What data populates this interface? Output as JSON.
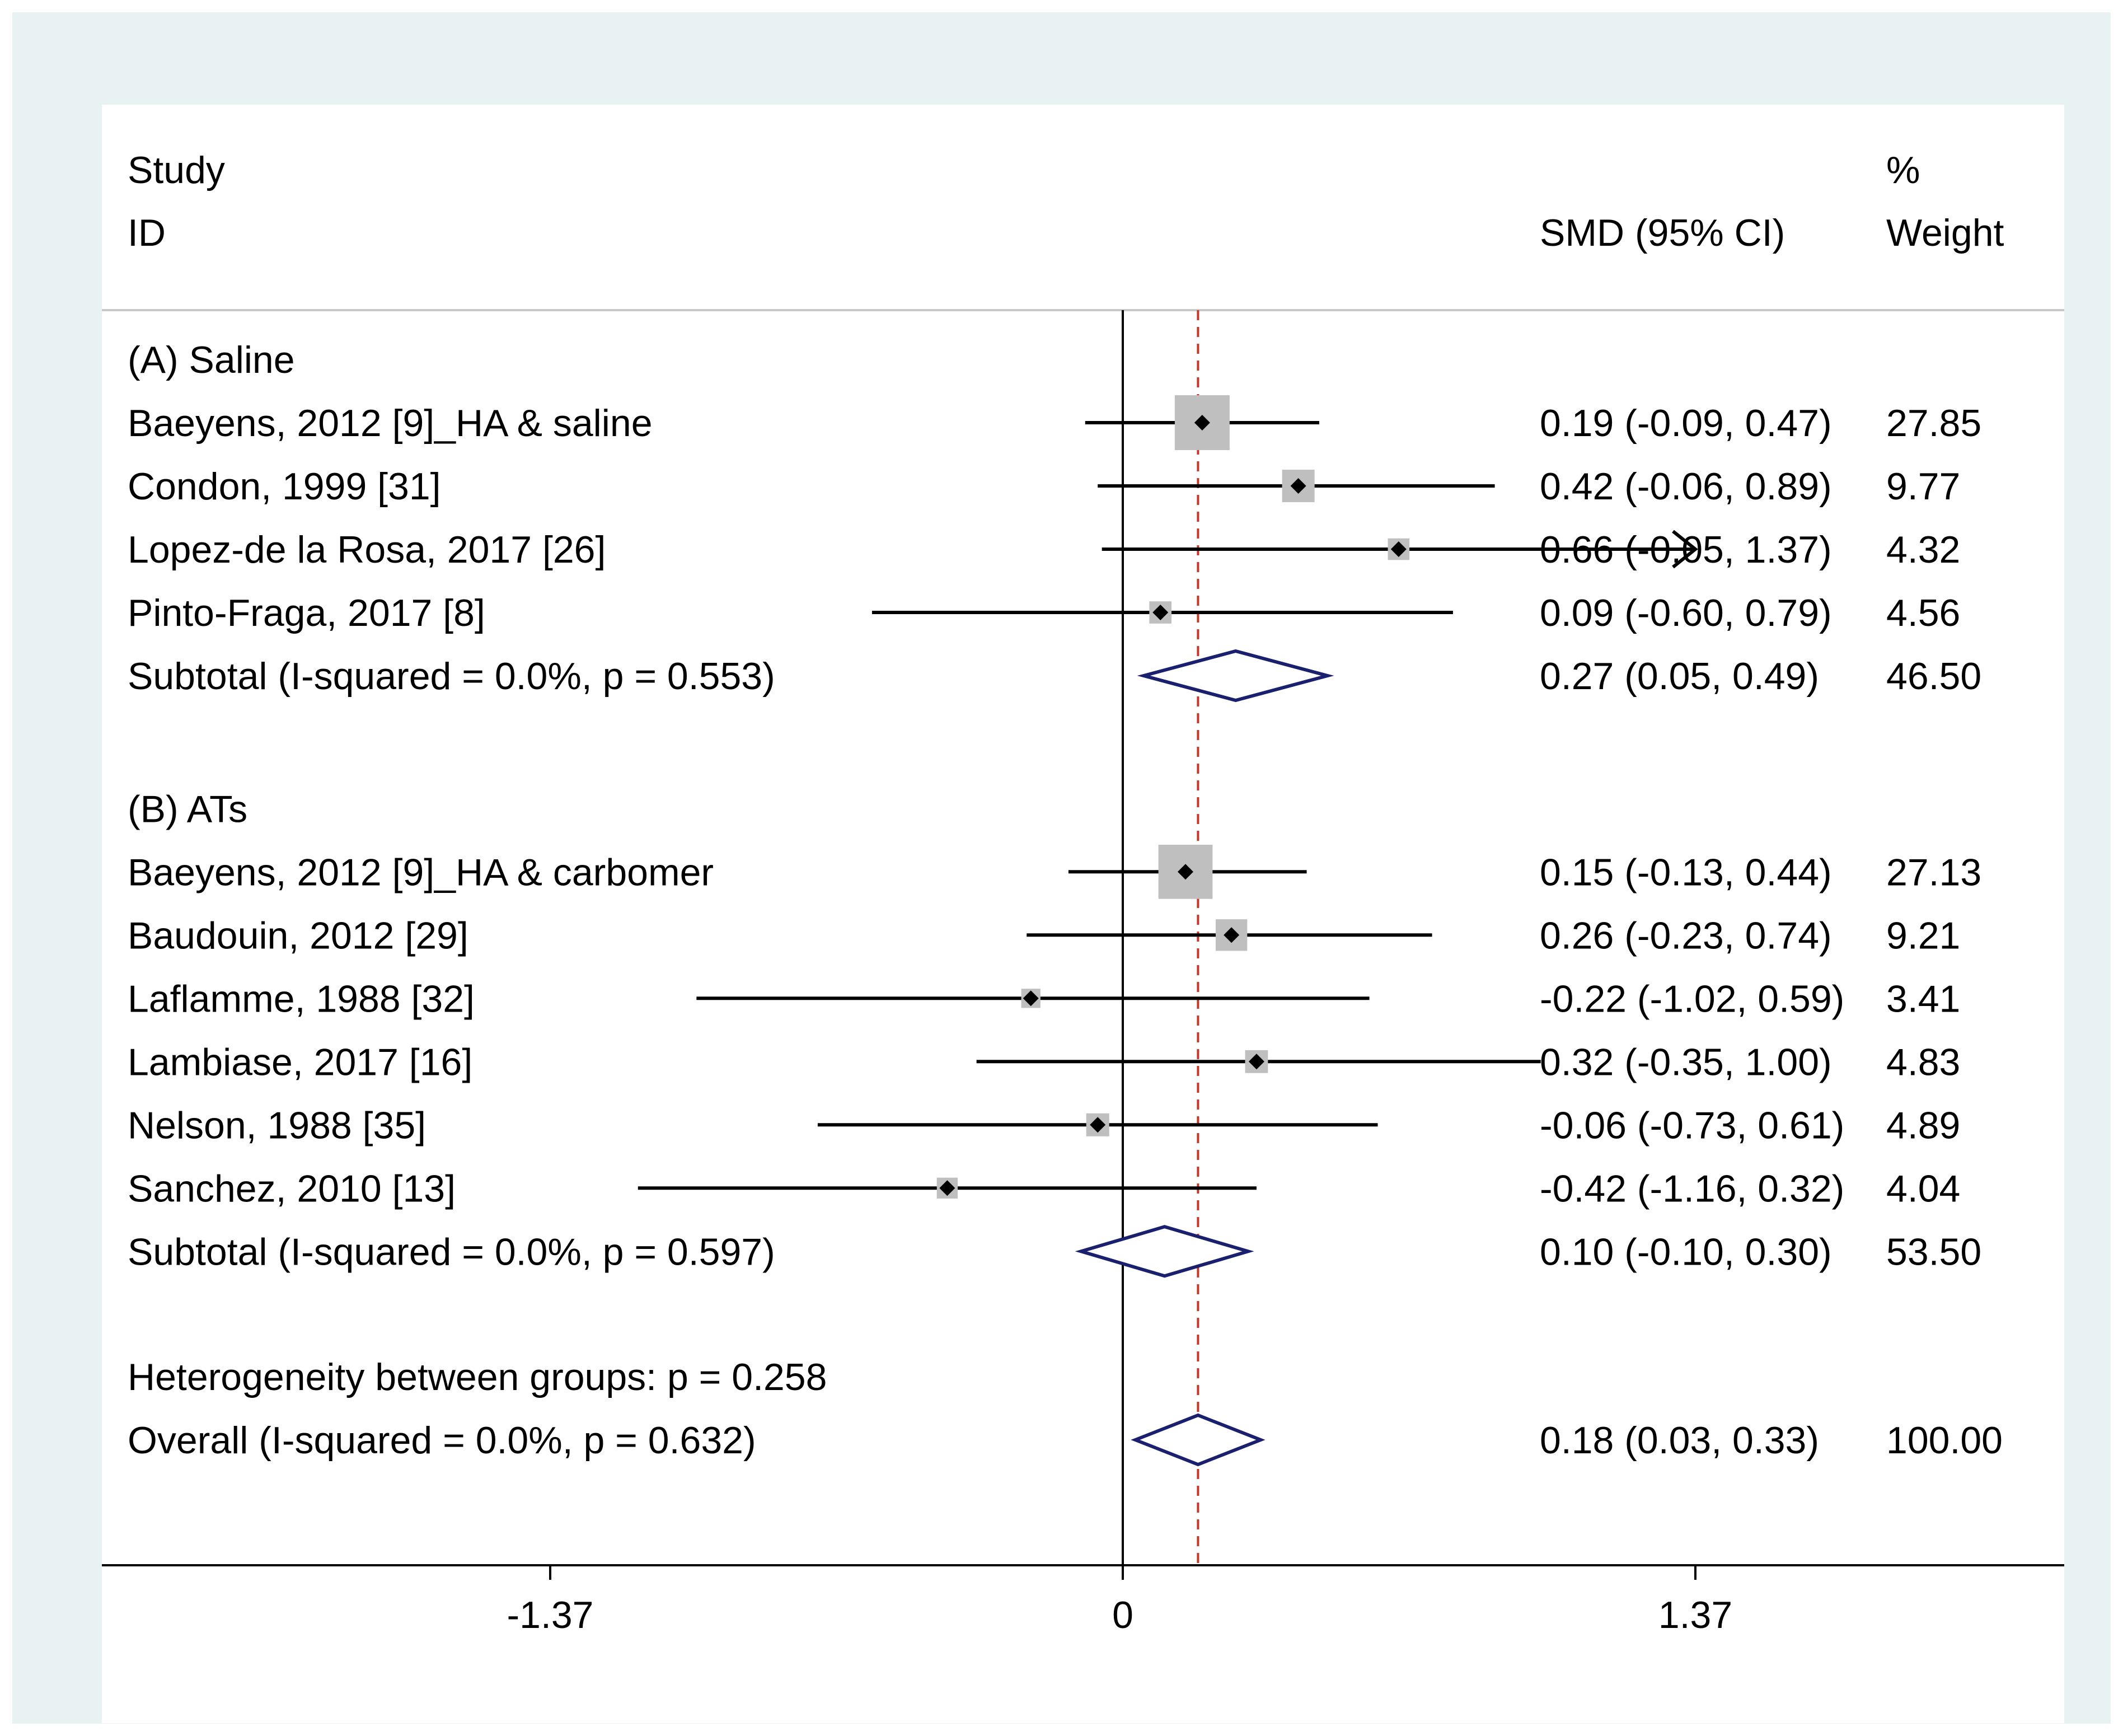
{
  "chart_data": {
    "type": "forest",
    "columns": {
      "study_line1": "Study",
      "study_line2": "ID",
      "estimate": "SMD (95% CI)",
      "weight_line1": "%",
      "weight_line2": "Weight"
    },
    "groups": [
      {
        "label": "(A) Saline",
        "studies": [
          {
            "name": "Baeyens, 2012 [9]_HA & saline",
            "est": 0.19,
            "lo": -0.09,
            "hi": 0.47,
            "ci_text": "0.19 (-0.09, 0.47)",
            "weight": 27.85,
            "weight_text": "27.85"
          },
          {
            "name": "Condon, 1999 [31]",
            "est": 0.42,
            "lo": -0.06,
            "hi": 0.89,
            "ci_text": "0.42 (-0.06, 0.89)",
            "weight": 9.77,
            "weight_text": "9.77"
          },
          {
            "name": "Lopez-de la Rosa, 2017 [26]",
            "est": 0.66,
            "lo": -0.05,
            "hi": 1.37,
            "ci_text": "0.66 (-0.05, 1.37)",
            "weight": 4.32,
            "weight_text": "4.32"
          },
          {
            "name": "Pinto-Fraga, 2017 [8]",
            "est": 0.09,
            "lo": -0.6,
            "hi": 0.79,
            "ci_text": "0.09 (-0.60, 0.79)",
            "weight": 4.56,
            "weight_text": "4.56"
          }
        ],
        "subtotal": {
          "label": "Subtotal  (I-squared = 0.0%, p = 0.553)",
          "est": 0.27,
          "lo": 0.05,
          "hi": 0.49,
          "ci_text": "0.27 (0.05, 0.49)",
          "weight_text": "46.50"
        }
      },
      {
        "label": "(B) ATs",
        "studies": [
          {
            "name": "Baeyens, 2012 [9]_HA & carbomer",
            "est": 0.15,
            "lo": -0.13,
            "hi": 0.44,
            "ci_text": "0.15 (-0.13, 0.44)",
            "weight": 27.13,
            "weight_text": "27.13"
          },
          {
            "name": "Baudouin, 2012 [29]",
            "est": 0.26,
            "lo": -0.23,
            "hi": 0.74,
            "ci_text": "0.26 (-0.23, 0.74)",
            "weight": 9.21,
            "weight_text": "9.21"
          },
          {
            "name": "Laflamme, 1988 [32]",
            "est": -0.22,
            "lo": -1.02,
            "hi": 0.59,
            "ci_text": "-0.22 (-1.02, 0.59)",
            "weight": 3.41,
            "weight_text": "3.41"
          },
          {
            "name": "Lambiase, 2017 [16]",
            "est": 0.32,
            "lo": -0.35,
            "hi": 1.0,
            "ci_text": "0.32 (-0.35, 1.00)",
            "weight": 4.83,
            "weight_text": "4.83"
          },
          {
            "name": "Nelson, 1988 [35]",
            "est": -0.06,
            "lo": -0.73,
            "hi": 0.61,
            "ci_text": "-0.06 (-0.73, 0.61)",
            "weight": 4.89,
            "weight_text": "4.89"
          },
          {
            "name": "Sanchez, 2010 [13]",
            "est": -0.42,
            "lo": -1.16,
            "hi": 0.32,
            "ci_text": "-0.42 (-1.16, 0.32)",
            "weight": 4.04,
            "weight_text": "4.04"
          }
        ],
        "subtotal": {
          "label": "Subtotal  (I-squared = 0.0%, p = 0.597)",
          "est": 0.1,
          "lo": -0.1,
          "hi": 0.3,
          "ci_text": "0.10 (-0.10, 0.30)",
          "weight_text": "53.50"
        }
      }
    ],
    "heterogeneity": "Heterogeneity between groups: p = 0.258",
    "overall": {
      "label": "Overall  (I-squared = 0.0%, p = 0.632)",
      "est": 0.18,
      "lo": 0.03,
      "hi": 0.33,
      "ci_text": "0.18 (0.03, 0.33)",
      "weight_text": "100.00"
    },
    "x_axis": {
      "xlim": [
        -1.37,
        1.37
      ],
      "ticks": [
        -1.37,
        0,
        1.37
      ],
      "tick_labels": [
        "-1.37",
        "0",
        "1.37"
      ],
      "null_line": 0,
      "reference_line": 0.18
    },
    "colors": {
      "background": "#e8f2f2",
      "panel": "#ffffff",
      "box": "#bfbfbf",
      "diamond": "#1a1f6e",
      "reference": "#c0392b",
      "ink": "#000000"
    }
  }
}
